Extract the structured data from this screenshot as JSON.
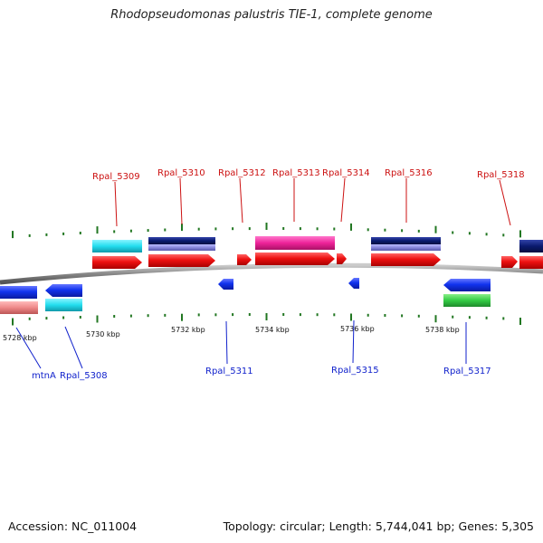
{
  "title": "Rhodopseudomonas palustris TIE-1, complete genome",
  "footer": {
    "accession": "Accession: NC_011004",
    "summary": "Topology: circular; Length: 5,744,041 bp; Genes: 5,305"
  },
  "scale_labels": [
    "5728 kbp",
    "5730 kbp",
    "5732 kbp",
    "5734 kbp",
    "5736 kbp",
    "5738 kbp"
  ],
  "gene_labels_top": [
    "Rpal_5309",
    "Rpal_5310",
    "Rpal_5312",
    "Rpal_5313",
    "Rpal_5314",
    "Rpal_5316",
    "Rpal_5318"
  ],
  "gene_labels_bottom": [
    "mtnA",
    "Rpal_5308",
    "Rpal_5311",
    "Rpal_5315",
    "Rpal_5317"
  ],
  "colors": {
    "gene_red": "#ee1111",
    "gene_blue": "#1133ee",
    "cyan": "#22ddee",
    "navy": "#0a1a6e",
    "lavender": "#8888dd",
    "magenta": "#ee2299",
    "pink": "#ee8888",
    "green": "#33cc44",
    "tick_green": "#227722",
    "backbone": "#888888"
  }
}
